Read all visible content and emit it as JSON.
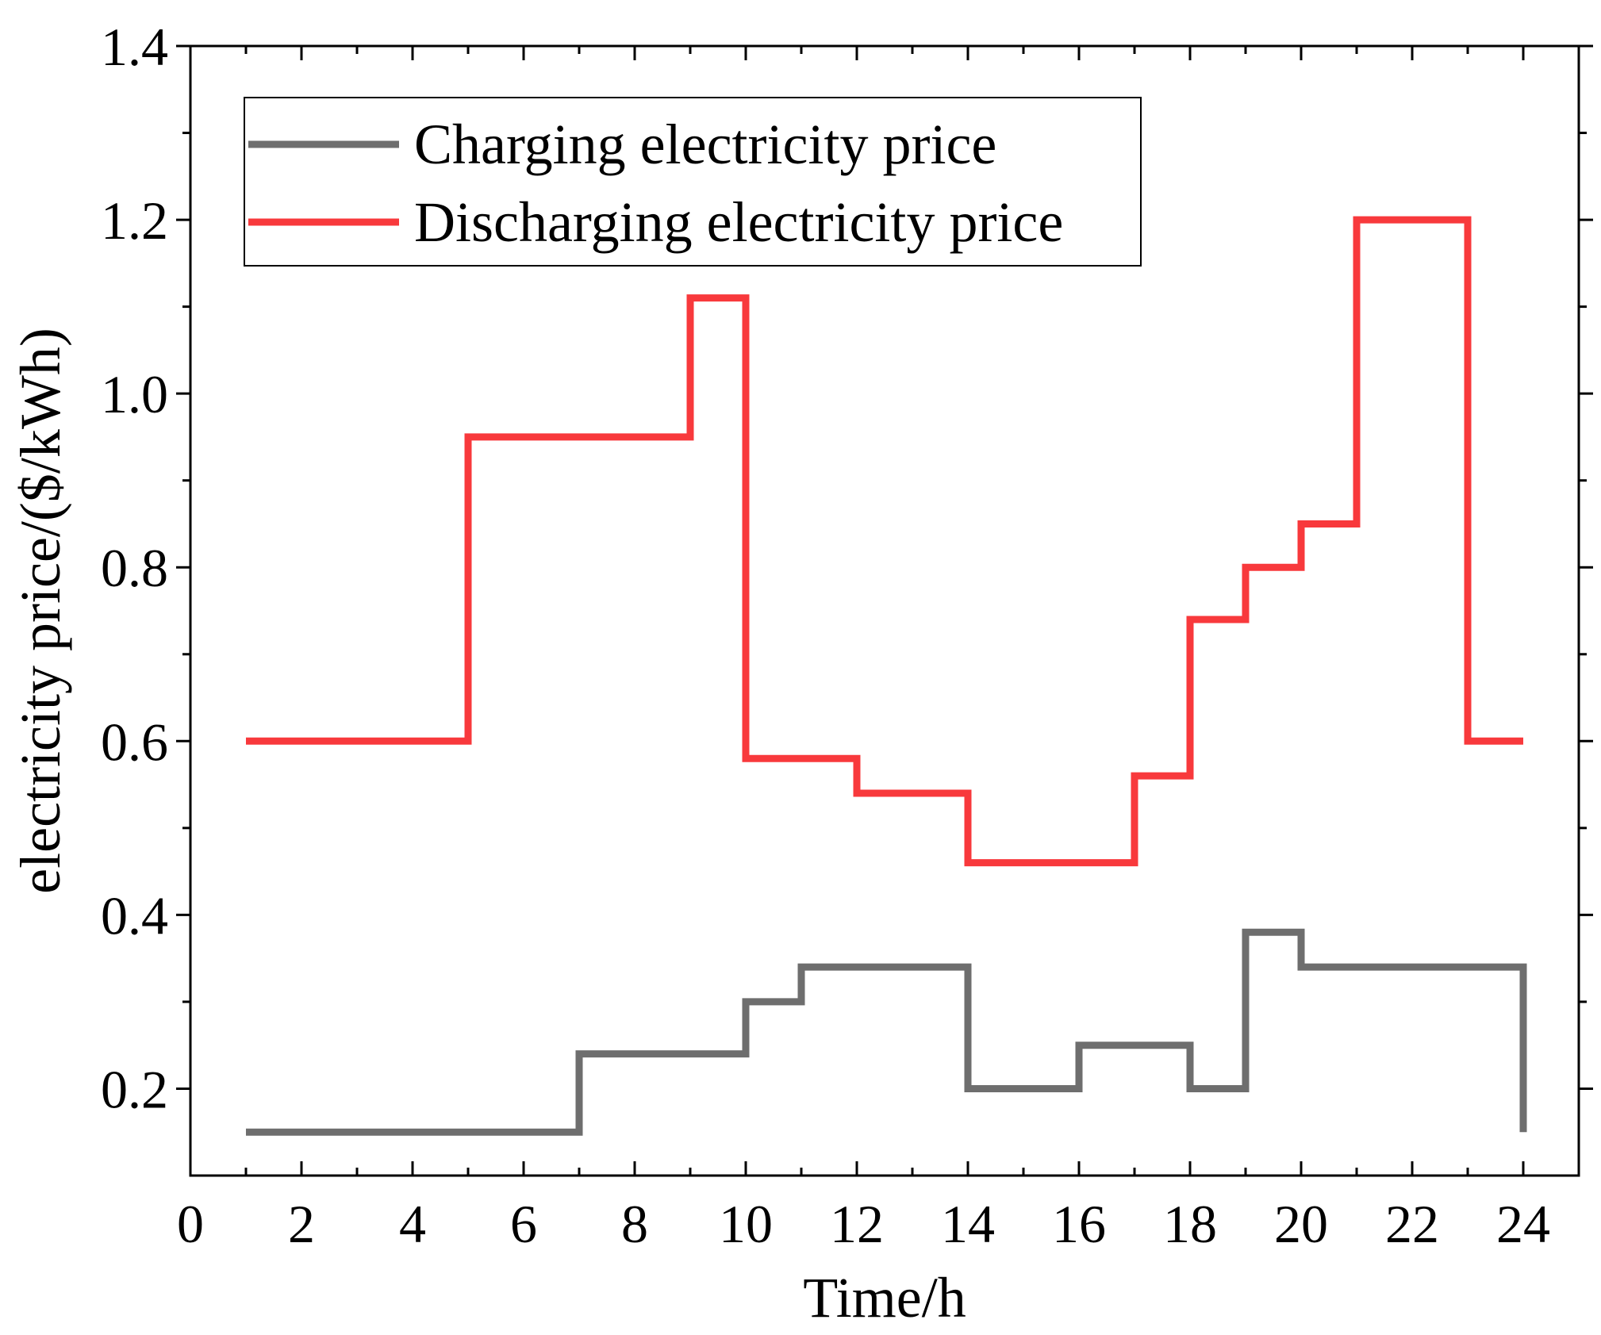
{
  "chart_data": {
    "type": "line",
    "step": "post",
    "title": "",
    "xlabel": "Time/h",
    "ylabel": "electricity price/($/kWh)",
    "xlim": [
      0,
      25
    ],
    "ylim": [
      0.1,
      1.4
    ],
    "xticks": [
      0,
      2,
      4,
      6,
      8,
      10,
      12,
      14,
      16,
      18,
      20,
      22,
      24
    ],
    "yticks": [
      0.2,
      0.4,
      0.6,
      0.8,
      1.0,
      1.2,
      1.4
    ],
    "xtick_labels": [
      "0",
      "2",
      "4",
      "6",
      "8",
      "10",
      "12",
      "14",
      "16",
      "18",
      "20",
      "22",
      "24"
    ],
    "ytick_labels": [
      "0.2",
      "0.4",
      "0.6",
      "0.8",
      "1.0",
      "1.2",
      "1.4"
    ],
    "grid": false,
    "legend_position": "top-left",
    "x": [
      1,
      2,
      3,
      4,
      5,
      6,
      7,
      8,
      9,
      10,
      11,
      12,
      13,
      14,
      15,
      16,
      17,
      18,
      19,
      20,
      21,
      22,
      23,
      24
    ],
    "series": [
      {
        "name": "Charging electricity price",
        "color": "#6e6e6e",
        "values": [
          0.15,
          0.15,
          0.15,
          0.15,
          0.15,
          0.15,
          0.24,
          0.24,
          0.24,
          0.3,
          0.34,
          0.34,
          0.34,
          0.2,
          0.2,
          0.25,
          0.25,
          0.2,
          0.38,
          0.34,
          0.34,
          0.34,
          0.34,
          0.15
        ]
      },
      {
        "name": "Discharging electricity price",
        "color": "#f8393c",
        "values": [
          0.6,
          0.6,
          0.6,
          0.6,
          0.95,
          0.95,
          0.95,
          0.95,
          1.11,
          0.58,
          0.58,
          0.54,
          0.54,
          0.46,
          0.46,
          0.46,
          0.56,
          0.74,
          0.8,
          0.85,
          1.2,
          1.2,
          0.6,
          0.6
        ]
      }
    ]
  }
}
